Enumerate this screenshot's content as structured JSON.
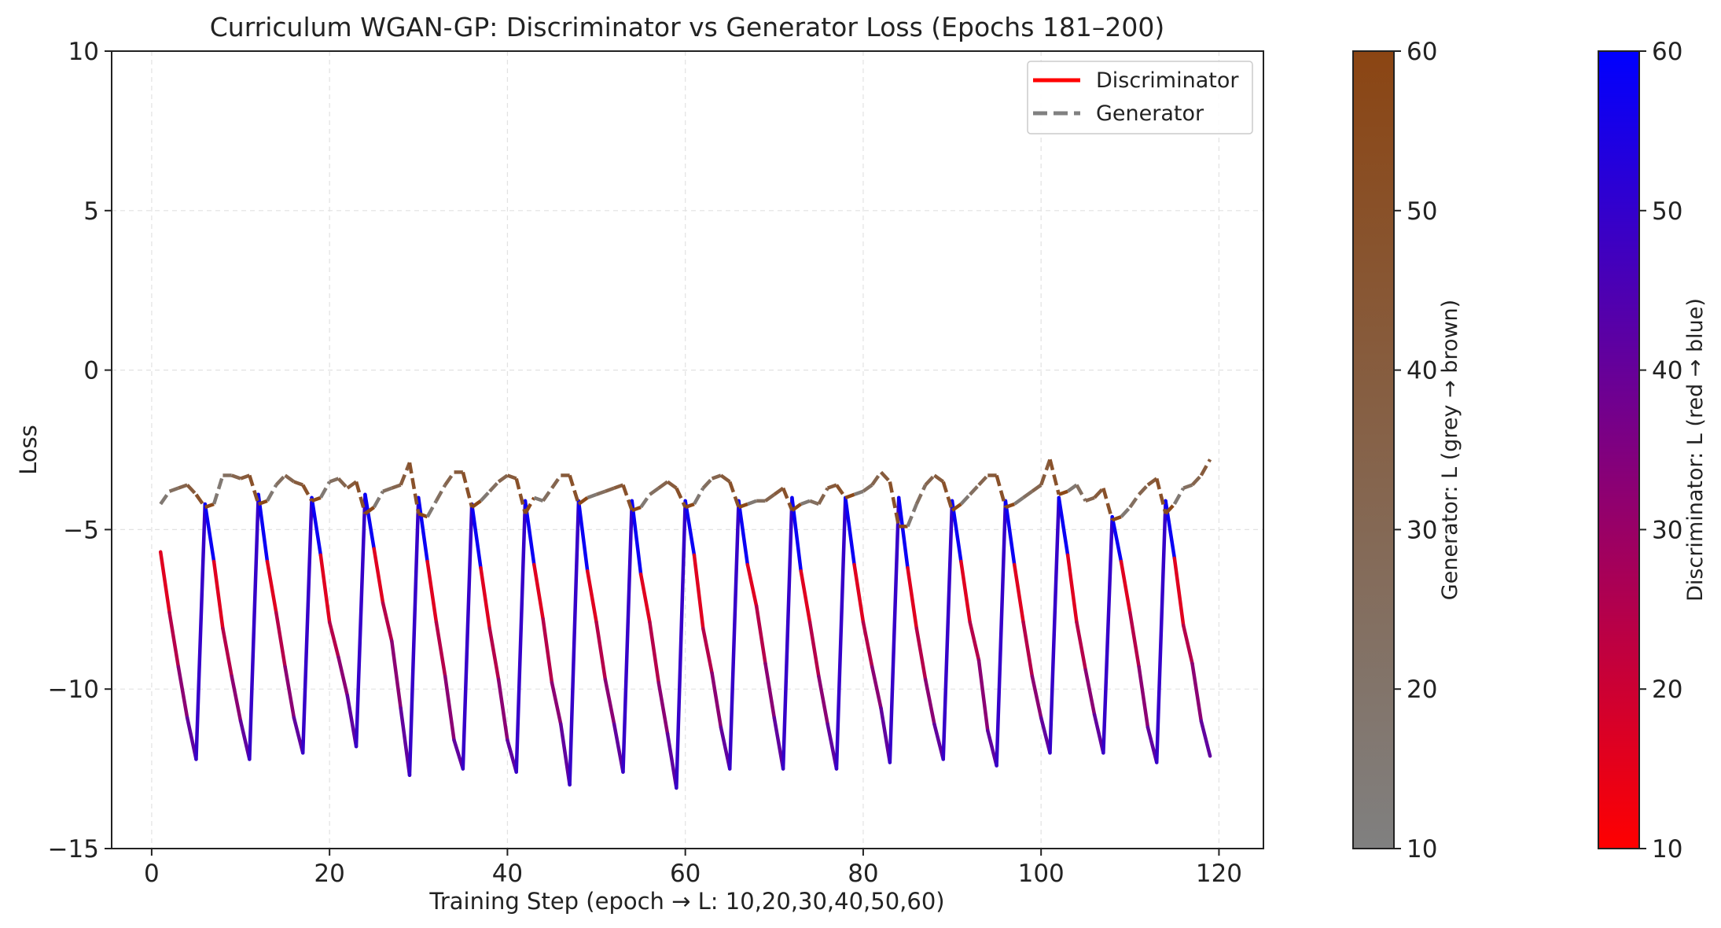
{
  "chart_data": {
    "type": "line",
    "title": "Curriculum WGAN-GP: Discriminator vs Generator Loss (Epochs 181–200)",
    "xlabel": "Training Step (epoch → L: 10,20,30,40,50,60)",
    "ylabel": "Loss",
    "xlim": [
      -4.5,
      125
    ],
    "ylim": [
      -15,
      10
    ],
    "xticks": [
      "0",
      "20",
      "40",
      "60",
      "80",
      "100",
      "120"
    ],
    "yticks": [
      "10",
      "5",
      "0",
      "−5",
      "−10",
      "−15"
    ],
    "grid": true,
    "legend": {
      "position": "top-right",
      "entries": [
        "Discriminator",
        "Generator"
      ]
    },
    "series": [
      {
        "name": "Discriminator",
        "style": "solid",
        "colormap": [
          "#ff0000",
          "#0000ff"
        ],
        "x": [
          1,
          2,
          3,
          4,
          5,
          6,
          7,
          8,
          9,
          10,
          11,
          12,
          13,
          14,
          15,
          16,
          17,
          18,
          19,
          20,
          21,
          22,
          23,
          24,
          25,
          26,
          27,
          28,
          29,
          30,
          31,
          32,
          33,
          34,
          35,
          36,
          37,
          38,
          39,
          40,
          41,
          42,
          43,
          44,
          45,
          46,
          47,
          48,
          49,
          50,
          51,
          52,
          53,
          54,
          55,
          56,
          57,
          58,
          59,
          60,
          61,
          62,
          63,
          64,
          65,
          66,
          67,
          68,
          69,
          70,
          71,
          72,
          73,
          74,
          75,
          76,
          77,
          78,
          79,
          80,
          81,
          82,
          83,
          84,
          85,
          86,
          87,
          88,
          89,
          90,
          91,
          92,
          93,
          94,
          95,
          96,
          97,
          98,
          99,
          100,
          101,
          102,
          103,
          104,
          105,
          106,
          107,
          108,
          109,
          110,
          111,
          112,
          113,
          114,
          115,
          116,
          117,
          118,
          119
        ],
        "y": [
          -5.7,
          -7.6,
          -9.3,
          -10.9,
          -12.2,
          -4.2,
          -6.0,
          -8.1,
          -9.6,
          -11.0,
          -12.2,
          -3.9,
          -6.0,
          -7.6,
          -9.3,
          -10.9,
          -12.0,
          -4.0,
          -5.8,
          -7.9,
          -9.0,
          -10.2,
          -11.8,
          -3.9,
          -5.6,
          -7.3,
          -8.5,
          -10.6,
          -12.7,
          -4.0,
          -6.0,
          -7.9,
          -9.6,
          -11.6,
          -12.5,
          -4.2,
          -6.2,
          -8.1,
          -9.7,
          -11.6,
          -12.6,
          -4.1,
          -6.1,
          -7.8,
          -9.8,
          -11.1,
          -13.0,
          -4.1,
          -6.3,
          -7.9,
          -9.7,
          -11.1,
          -12.6,
          -4.1,
          -6.4,
          -7.9,
          -9.8,
          -11.4,
          -13.1,
          -4.1,
          -5.8,
          -8.1,
          -9.5,
          -11.2,
          -12.5,
          -4.1,
          -6.1,
          -7.4,
          -9.2,
          -10.9,
          -12.5,
          -4.0,
          -6.3,
          -7.9,
          -9.6,
          -11.1,
          -12.5,
          -4.0,
          -6.1,
          -7.9,
          -9.3,
          -10.6,
          -12.3,
          -4.0,
          -6.2,
          -8.1,
          -9.7,
          -11.1,
          -12.2,
          -4.1,
          -6.0,
          -7.9,
          -9.1,
          -11.3,
          -12.4,
          -4.1,
          -6.1,
          -7.9,
          -9.6,
          -10.9,
          -12.0,
          -4.0,
          -5.8,
          -7.9,
          -9.4,
          -10.8,
          -12.0,
          -4.6,
          -6.0,
          -7.6,
          -9.3,
          -11.2,
          -12.3,
          -4.1,
          -5.9,
          -8.0,
          -9.2,
          -11.0,
          -12.1
        ]
      },
      {
        "name": "Generator",
        "style": "dashed",
        "colormap": [
          "#808080",
          "#8b4513"
        ],
        "x": [
          1,
          2,
          3,
          4,
          5,
          6,
          7,
          8,
          9,
          10,
          11,
          12,
          13,
          14,
          15,
          16,
          17,
          18,
          19,
          20,
          21,
          22,
          23,
          24,
          25,
          26,
          27,
          28,
          29,
          30,
          31,
          32,
          33,
          34,
          35,
          36,
          37,
          38,
          39,
          40,
          41,
          42,
          43,
          44,
          45,
          46,
          47,
          48,
          49,
          50,
          51,
          52,
          53,
          54,
          55,
          56,
          57,
          58,
          59,
          60,
          61,
          62,
          63,
          64,
          65,
          66,
          67,
          68,
          69,
          70,
          71,
          72,
          73,
          74,
          75,
          76,
          77,
          78,
          79,
          80,
          81,
          82,
          83,
          84,
          85,
          86,
          87,
          88,
          89,
          90,
          91,
          92,
          93,
          94,
          95,
          96,
          97,
          98,
          99,
          100,
          101,
          102,
          103,
          104,
          105,
          106,
          107,
          108,
          109,
          110,
          111,
          112,
          113,
          114,
          115,
          116,
          117,
          118,
          119
        ],
        "y": [
          -4.2,
          -3.8,
          -3.7,
          -3.6,
          -3.9,
          -4.3,
          -4.2,
          -3.3,
          -3.3,
          -3.4,
          -3.3,
          -4.2,
          -4.1,
          -3.6,
          -3.3,
          -3.5,
          -3.6,
          -4.1,
          -4.0,
          -3.5,
          -3.4,
          -3.7,
          -3.5,
          -4.5,
          -4.3,
          -3.8,
          -3.7,
          -3.6,
          -2.9,
          -4.5,
          -4.6,
          -4.1,
          -3.6,
          -3.2,
          -3.2,
          -4.3,
          -4.1,
          -3.8,
          -3.5,
          -3.3,
          -3.4,
          -4.5,
          -4.0,
          -4.1,
          -3.7,
          -3.3,
          -3.3,
          -4.2,
          -4.0,
          -3.9,
          -3.8,
          -3.7,
          -3.6,
          -4.4,
          -4.3,
          -3.9,
          -3.7,
          -3.5,
          -3.7,
          -4.3,
          -4.2,
          -3.7,
          -3.4,
          -3.3,
          -3.5,
          -4.3,
          -4.2,
          -4.1,
          -4.1,
          -3.9,
          -3.7,
          -4.4,
          -4.2,
          -4.1,
          -4.2,
          -3.7,
          -3.6,
          -4.0,
          -3.9,
          -3.8,
          -3.6,
          -3.2,
          -3.5,
          -4.9,
          -4.9,
          -4.2,
          -3.6,
          -3.3,
          -3.5,
          -4.4,
          -4.2,
          -3.9,
          -3.6,
          -3.3,
          -3.3,
          -4.3,
          -4.2,
          -4.0,
          -3.8,
          -3.6,
          -2.8,
          -3.9,
          -3.8,
          -3.6,
          -4.1,
          -4.0,
          -3.7,
          -4.7,
          -4.6,
          -4.3,
          -3.9,
          -3.6,
          -3.4,
          -4.5,
          -4.2,
          -3.7,
          -3.6,
          -3.3,
          -2.8
        ]
      }
    ],
    "colorbars": [
      {
        "label": "Generator: L (grey → brown)",
        "range": [
          10,
          60
        ],
        "ticks": [
          "60",
          "50",
          "40",
          "30",
          "20",
          "10"
        ],
        "colors": [
          "#808080",
          "#8b4513"
        ]
      },
      {
        "label": "Discriminator: L (red → blue)",
        "range": [
          10,
          60
        ],
        "ticks": [
          "60",
          "50",
          "40",
          "30",
          "20",
          "10"
        ],
        "colors": [
          "#ff0000",
          "#0000ff"
        ]
      }
    ]
  }
}
